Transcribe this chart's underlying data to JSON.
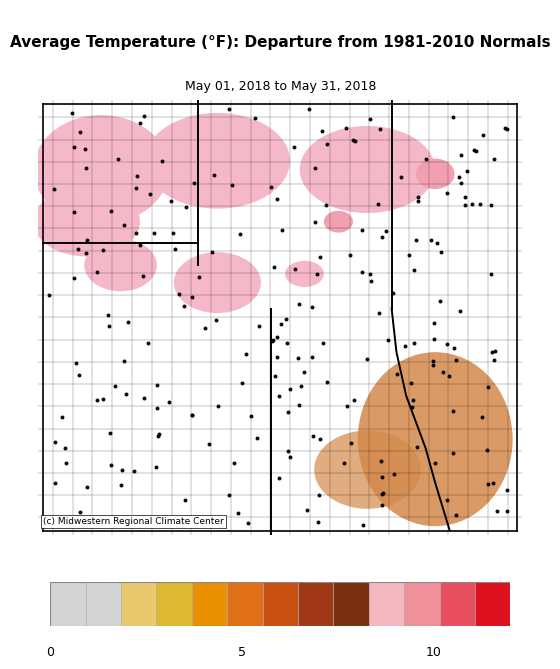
{
  "title": "Average Temperature (°F): Departure from 1981-2010 Normals",
  "subtitle": "May 01, 2018 to May 31, 2018",
  "credit": "(c) Midwestern Regional Climate Center",
  "colorbar_colors": [
    "#d4d4d4",
    "#d4d4d4",
    "#e8c96e",
    "#ddb830",
    "#e89000",
    "#e07018",
    "#c85010",
    "#a03818",
    "#783010",
    "#f5b8c0",
    "#f09098",
    "#e85060",
    "#dd1020"
  ],
  "title_fontsize": 11,
  "subtitle_fontsize": 9,
  "credit_fontsize": 6.5,
  "map_bg_color": "#c86414",
  "dot_color": "#000000",
  "figure_bg": "#ffffff",
  "pink_color": "#f5b8c8",
  "light_orange": "#e08030",
  "dark_brown": "#7a3010",
  "medium_orange": "#d06020",
  "lighter_area": "#d4894a"
}
